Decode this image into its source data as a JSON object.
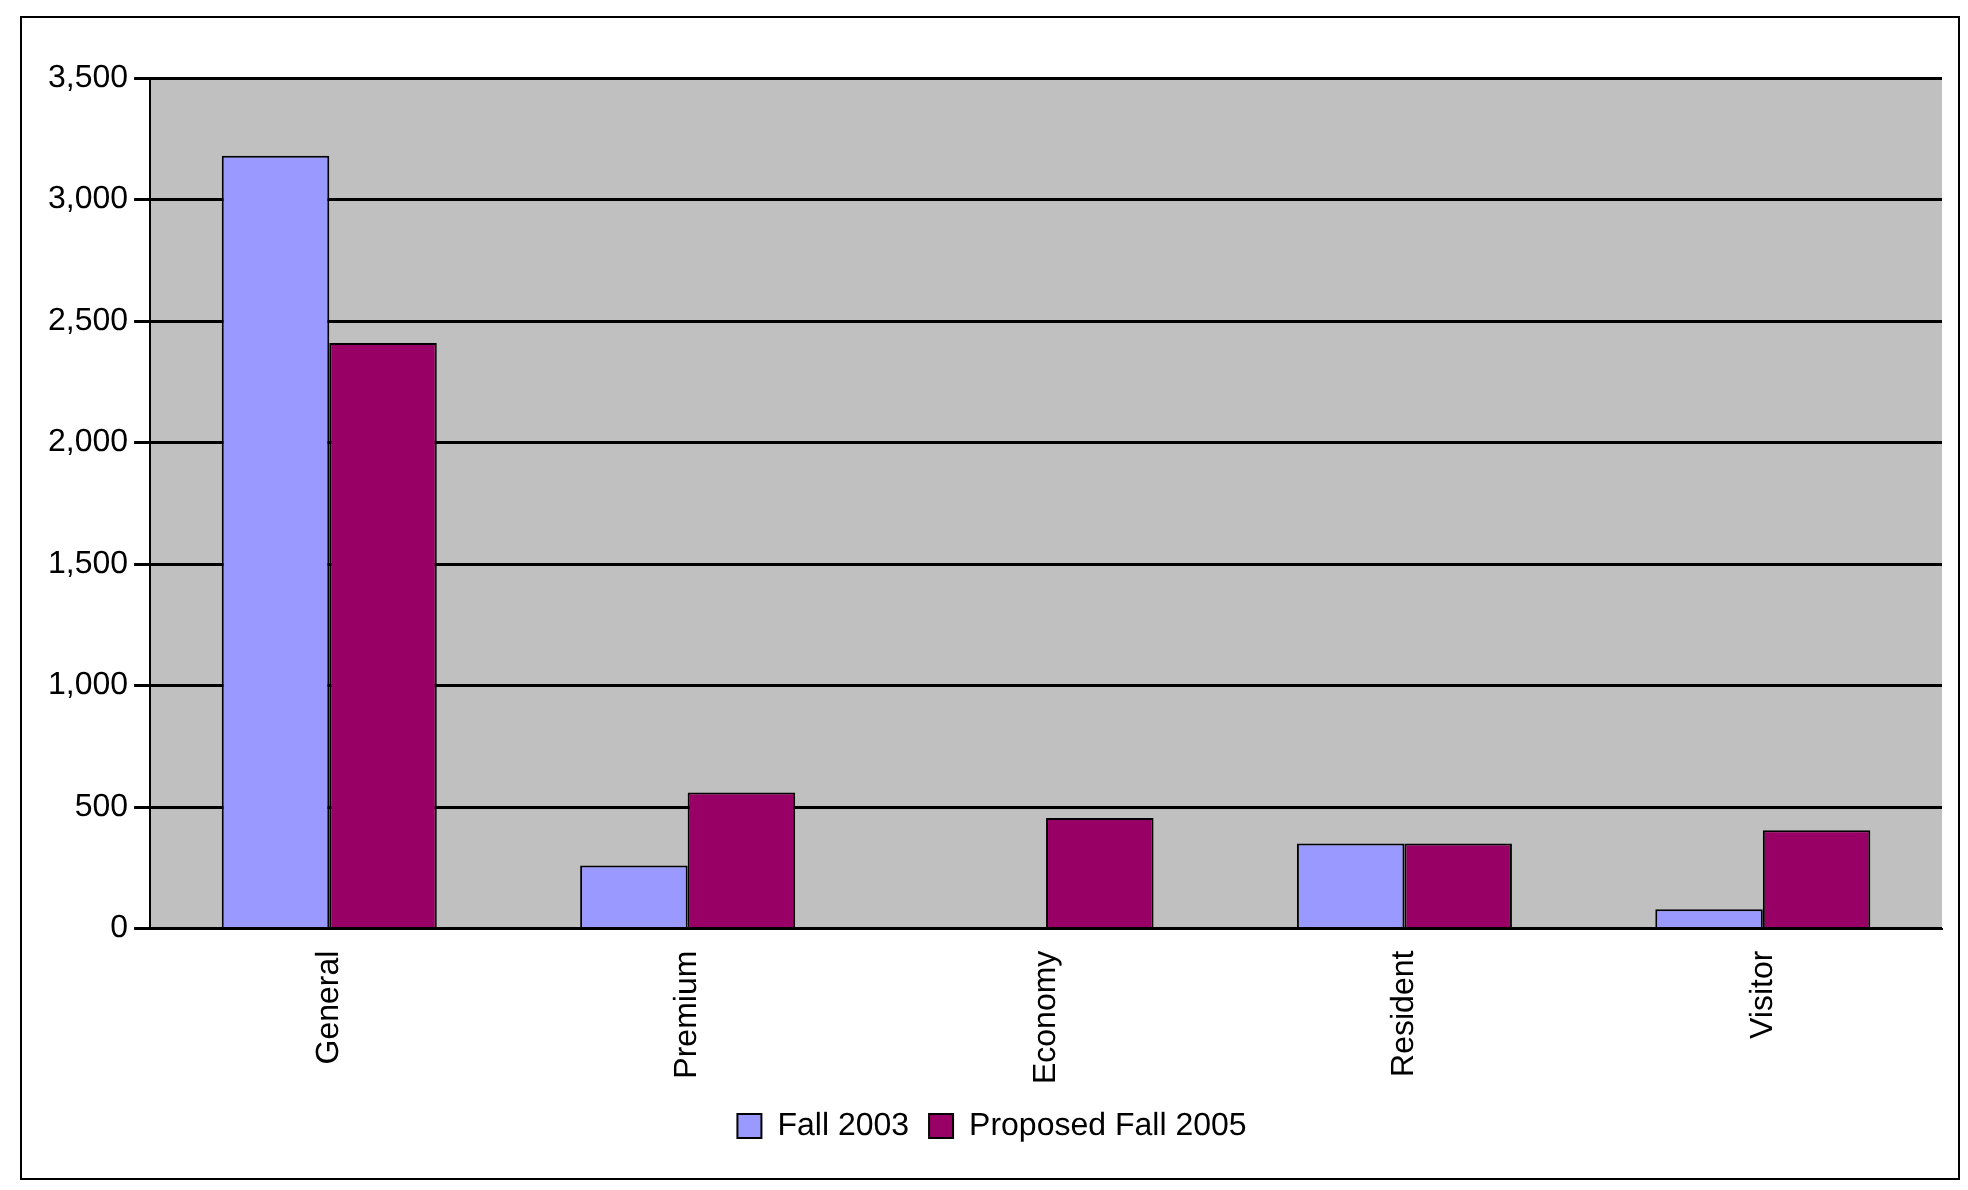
{
  "chart_data": {
    "type": "bar",
    "categories": [
      "General",
      "Premium",
      "Economy",
      "Resident",
      "Visitor"
    ],
    "series": [
      {
        "name": "Fall 2003",
        "color": "#9999ff",
        "values": [
          3180,
          260,
          0,
          350,
          80
        ]
      },
      {
        "name": "Proposed Fall 2005",
        "color": "#990066",
        "values": [
          2410,
          560,
          455,
          350,
          405
        ]
      }
    ],
    "ylim": [
      0,
      3500
    ],
    "yticks": [
      {
        "value": 0,
        "label": "0"
      },
      {
        "value": 500,
        "label": "500"
      },
      {
        "value": 1000,
        "label": "1,000"
      },
      {
        "value": 1500,
        "label": "1,500"
      },
      {
        "value": 2000,
        "label": "2,000"
      },
      {
        "value": 2500,
        "label": "2,500"
      },
      {
        "value": 3000,
        "label": "3,000"
      },
      {
        "value": 3500,
        "label": "3,500"
      }
    ],
    "grid": "y",
    "legend": "bottom"
  }
}
